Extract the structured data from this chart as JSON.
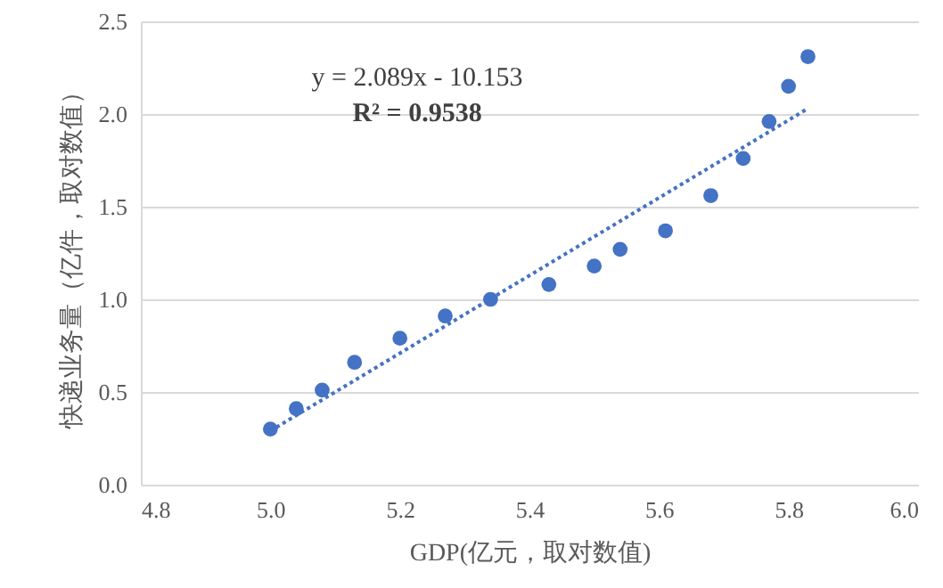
{
  "chart_data": {
    "type": "scatter",
    "xlabel": "GDP(亿元，取对数值)",
    "ylabel": "快递业务量（亿件，取对数值）",
    "annotations": [
      "y = 2.089x - 10.153",
      "R² = 0.9538"
    ],
    "xlim": [
      4.8,
      6.0
    ],
    "xticks": [
      4.8,
      {
        "value": 5,
        "label": "5.0"
      },
      5.2,
      5.4,
      5.6,
      5.8,
      {
        "value": 6,
        "label": "6.0"
      }
    ],
    "ylim": [
      0,
      2.5
    ],
    "yticks": [
      {
        "value": 0,
        "label": "0.0"
      },
      0.5,
      {
        "value": 1,
        "label": "1.0"
      },
      1.5,
      {
        "value": 2,
        "label": "2.0"
      },
      2.5
    ],
    "grid": "y",
    "marker": "circle",
    "series": [
      {
        "color": "#4472c4",
        "x": [
          5.0,
          5.04,
          5.08,
          5.13,
          5.2,
          5.27,
          5.34,
          5.43,
          5.5,
          5.54,
          5.61,
          5.68,
          5.73,
          5.77,
          5.8,
          5.83
        ],
        "values": [
          0.3,
          0.41,
          0.51,
          0.66,
          0.79,
          0.91,
          1.0,
          1.08,
          1.18,
          1.27,
          1.37,
          1.56,
          1.76,
          1.96,
          2.15,
          2.31
        ]
      },
      {
        "type": "line",
        "color": "#4472c4",
        "marker": "none",
        "line_style": "dotted",
        "x": [
          5.0,
          5.83
        ],
        "values": [
          0.29,
          2.03
        ]
      }
    ]
  }
}
